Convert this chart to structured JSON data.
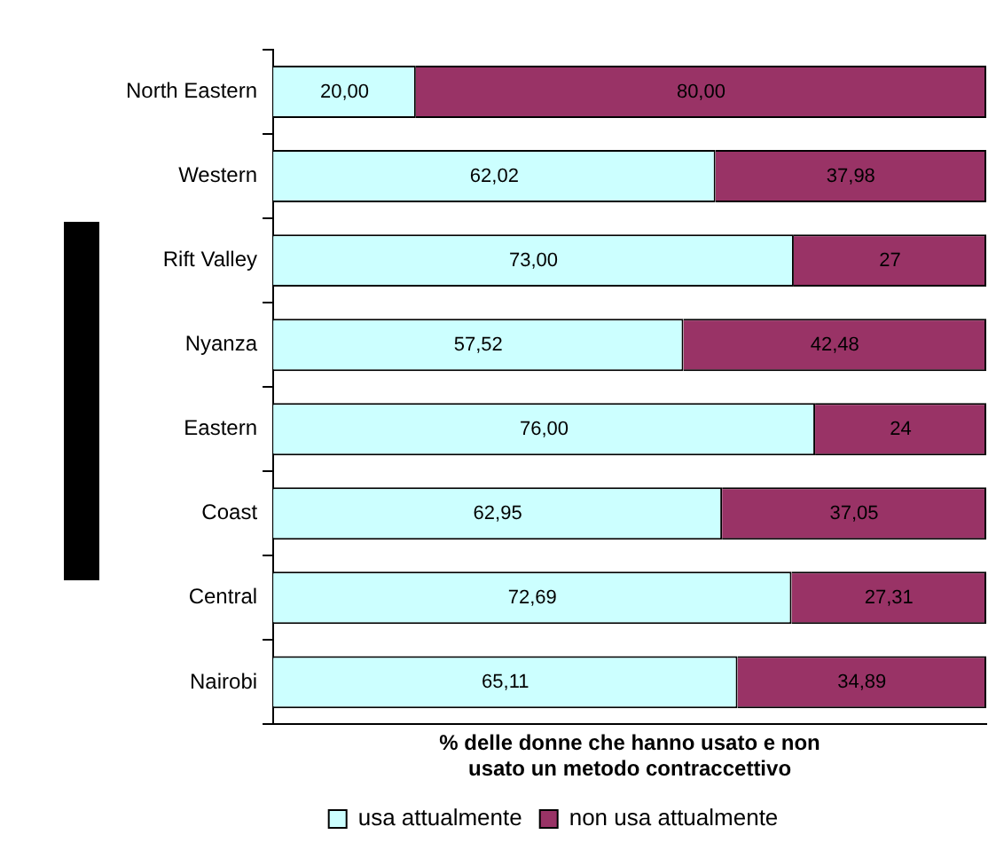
{
  "chart_data": {
    "type": "bar",
    "orientation": "horizontal",
    "stacked": true,
    "categories": [
      "North Eastern",
      "Western",
      "Rift Valley",
      "Nyanza",
      "Eastern",
      "Coast",
      "Central",
      "Nairobi"
    ],
    "xlabel": "% delle donne che hanno usato e non usato un metodo contraccettivo",
    "xlim": [
      0,
      100
    ],
    "tick_labels": "y",
    "grid": false,
    "legend": "bottom",
    "series": [
      {
        "name": "usa attualmente",
        "color": "#ccffff",
        "values": [
          20,
          62.02,
          73,
          57.52,
          76,
          62.95,
          72.69,
          65.11
        ],
        "value_labels": [
          "20,00",
          "62,02",
          "73,00",
          "57,52",
          "76,00",
          "62,95",
          "72,69",
          "65,11"
        ]
      },
      {
        "name": "non usa attualmente",
        "color": "#993366",
        "values": [
          80,
          37.98,
          27,
          42.48,
          24,
          37.05,
          27.31,
          34.89
        ],
        "value_labels": [
          "80,00",
          "37,98",
          "27",
          "42,48",
          "24",
          "37,05",
          "27,31",
          "34,89"
        ]
      }
    ]
  }
}
